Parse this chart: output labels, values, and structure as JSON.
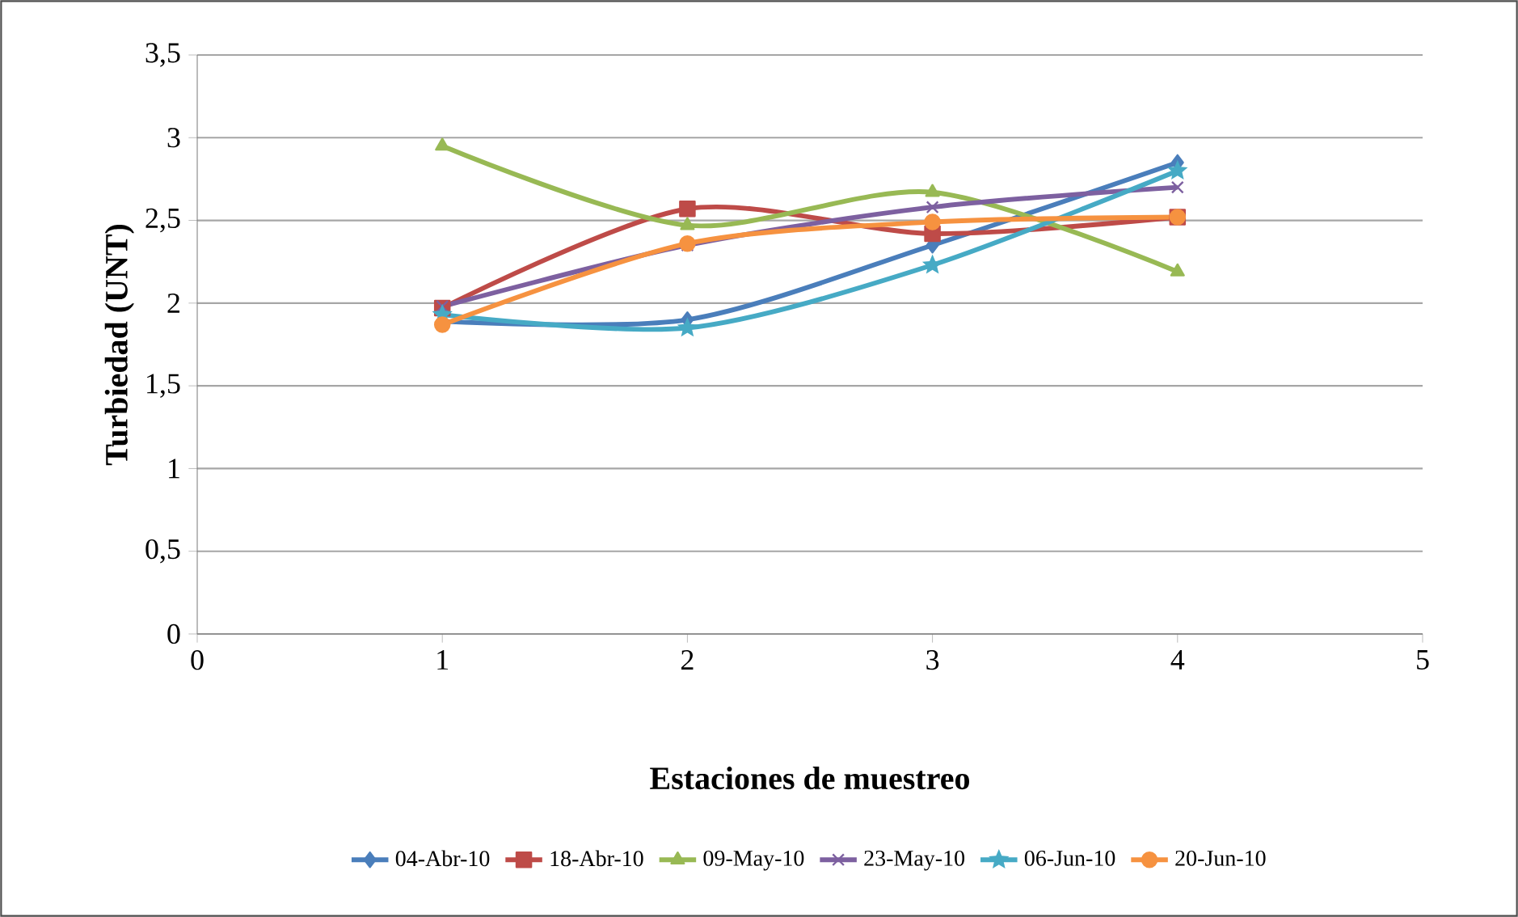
{
  "chart_data": {
    "type": "line",
    "xlabel": "Estaciones de muestreo",
    "ylabel": "Turbiedad (UNT)",
    "x": [
      1,
      2,
      3,
      4
    ],
    "xlim": [
      0,
      5
    ],
    "xticks": [
      0,
      1,
      2,
      3,
      4,
      5
    ],
    "ylim": [
      0,
      3.5
    ],
    "yticks": [
      {
        "value": 0,
        "label": "0"
      },
      {
        "value": 0.5,
        "label": "0,5"
      },
      {
        "value": 1,
        "label": "1"
      },
      {
        "value": 1.5,
        "label": "1,5"
      },
      {
        "value": 2,
        "label": "2"
      },
      {
        "value": 2.5,
        "label": "2,5"
      },
      {
        "value": 3,
        "label": "3"
      },
      {
        "value": 3.5,
        "label": "3,5"
      }
    ],
    "grid": "y",
    "legend": "bottom",
    "series": [
      {
        "name": "04-Abr-10",
        "color": "#4a7ebb",
        "marker": "diamond",
        "values": [
          1.89,
          1.9,
          2.35,
          2.85
        ]
      },
      {
        "name": "18-Abr-10",
        "color": "#be4b48",
        "marker": "square",
        "values": [
          1.97,
          2.57,
          2.42,
          2.52
        ]
      },
      {
        "name": "09-May-10",
        "color": "#98b954",
        "marker": "triangle",
        "values": [
          2.95,
          2.47,
          2.67,
          2.19
        ]
      },
      {
        "name": "23-May-10",
        "color": "#7d60a0",
        "marker": "cross",
        "values": [
          1.98,
          2.35,
          2.58,
          2.7
        ]
      },
      {
        "name": "06-Jun-10",
        "color": "#46aac5",
        "marker": "star",
        "values": [
          1.93,
          1.85,
          2.23,
          2.8
        ]
      },
      {
        "name": "20-Jun-10",
        "color": "#f69240",
        "marker": "circle",
        "values": [
          1.87,
          2.36,
          2.49,
          2.52
        ]
      }
    ]
  }
}
